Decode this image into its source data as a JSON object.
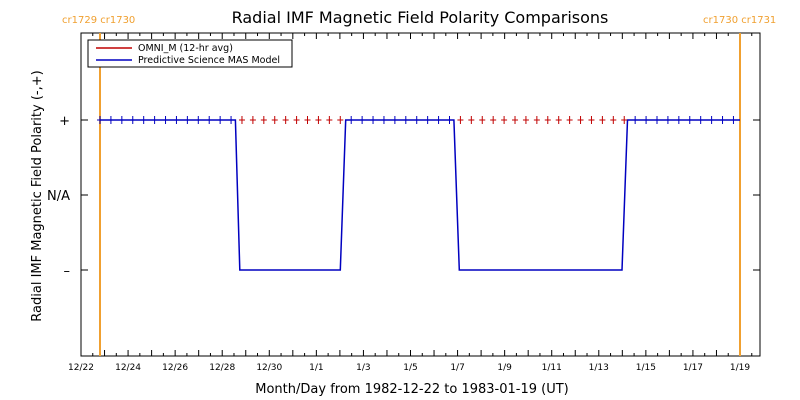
{
  "chart_data": {
    "type": "line",
    "title": "Radial IMF Magnetic Field Polarity Comparisons",
    "xlabel": "Month/Day from 1982-12-22 to 1983-01-19 (UT)",
    "ylabel": "Radial IMF Magnetic Field Polarity (-,+)",
    "x_range_days": [
      0,
      28
    ],
    "x_ticks": [
      {
        "day": 0,
        "label": "12/22"
      },
      {
        "day": 2,
        "label": "12/24"
      },
      {
        "day": 4,
        "label": "12/26"
      },
      {
        "day": 6,
        "label": "12/28"
      },
      {
        "day": 8,
        "label": "12/30"
      },
      {
        "day": 10,
        "label": "1/1"
      },
      {
        "day": 12,
        "label": "1/3"
      },
      {
        "day": 14,
        "label": "1/5"
      },
      {
        "day": 16,
        "label": "1/7"
      },
      {
        "day": 18,
        "label": "1/9"
      },
      {
        "day": 20,
        "label": "1/11"
      },
      {
        "day": 22,
        "label": "1/13"
      },
      {
        "day": 24,
        "label": "1/15"
      },
      {
        "day": 26,
        "label": "1/17"
      },
      {
        "day": 28,
        "label": "1/19"
      }
    ],
    "y_ticks": [
      {
        "value": 1,
        "label": "+"
      },
      {
        "value": 0,
        "label": "N/A"
      },
      {
        "value": -1,
        "label": "–"
      }
    ],
    "ylim": [
      -2,
      2
    ],
    "carrington_markers": [
      {
        "day": 1.55,
        "label": "cr1729 cr1730"
      },
      {
        "day": 31.05,
        "label": "cr1730 cr1731"
      }
    ],
    "series": [
      {
        "name": "OMNI_M (12-hr avg)",
        "color": "#c00000",
        "marker": "plus",
        "points": [
          [
            1.6,
            1
          ],
          [
            2.1,
            1
          ],
          [
            2.6,
            1
          ],
          [
            3.1,
            1
          ],
          [
            3.6,
            1
          ],
          [
            4.1,
            1
          ],
          [
            4.6,
            1
          ],
          [
            5.1,
            1
          ],
          [
            5.6,
            1
          ],
          [
            6.1,
            1
          ],
          [
            6.6,
            1
          ],
          [
            7.1,
            1
          ],
          [
            7.6,
            1
          ],
          [
            8.1,
            1
          ],
          [
            8.6,
            1
          ],
          [
            9.1,
            1
          ],
          [
            9.6,
            1
          ],
          [
            10.1,
            1
          ],
          [
            10.6,
            1
          ],
          [
            11.1,
            1
          ],
          [
            11.6,
            1
          ],
          [
            12.1,
            1
          ],
          [
            12.6,
            1
          ],
          [
            13.1,
            1
          ],
          [
            13.6,
            1
          ],
          [
            14.1,
            1
          ],
          [
            14.6,
            1
          ],
          [
            15.1,
            1
          ],
          [
            15.6,
            1
          ],
          [
            16.1,
            1
          ],
          [
            16.6,
            1
          ],
          [
            17.1,
            1
          ],
          [
            17.6,
            1
          ],
          [
            18.1,
            1
          ],
          [
            18.6,
            1
          ],
          [
            19.1,
            1
          ],
          [
            19.6,
            1
          ],
          [
            20.1,
            1
          ],
          [
            20.6,
            1
          ],
          [
            21.1,
            1
          ],
          [
            21.6,
            1
          ],
          [
            22.1,
            1
          ],
          [
            22.6,
            1
          ],
          [
            23.1,
            1
          ],
          [
            23.6,
            1
          ],
          [
            24.1,
            1
          ],
          [
            24.6,
            1
          ],
          [
            25.1,
            1
          ],
          [
            25.6,
            1
          ],
          [
            26.1,
            1
          ],
          [
            26.6,
            1
          ],
          [
            27.1,
            1
          ],
          [
            27.6,
            1
          ],
          [
            28.1,
            1
          ],
          [
            28.6,
            1
          ],
          [
            29.1,
            1
          ],
          [
            29.6,
            1
          ],
          [
            30.1,
            1
          ],
          [
            30.6,
            1
          ]
        ]
      },
      {
        "name": "Predictive Science MAS Model",
        "color": "#0000c0",
        "points": [
          [
            1.6,
            1
          ],
          [
            7.8,
            1
          ],
          [
            8.0,
            -1
          ],
          [
            12.6,
            -1
          ],
          [
            12.85,
            1
          ],
          [
            17.8,
            1
          ],
          [
            18.05,
            -1
          ],
          [
            25.5,
            -1
          ],
          [
            25.75,
            1
          ],
          [
            30.9,
            1
          ]
        ]
      }
    ],
    "legend": {
      "position": "top-left"
    }
  },
  "colors": {
    "axis": "#000000",
    "carrington": "#f0a030",
    "omni": "#c00000",
    "model": "#0000c0"
  }
}
